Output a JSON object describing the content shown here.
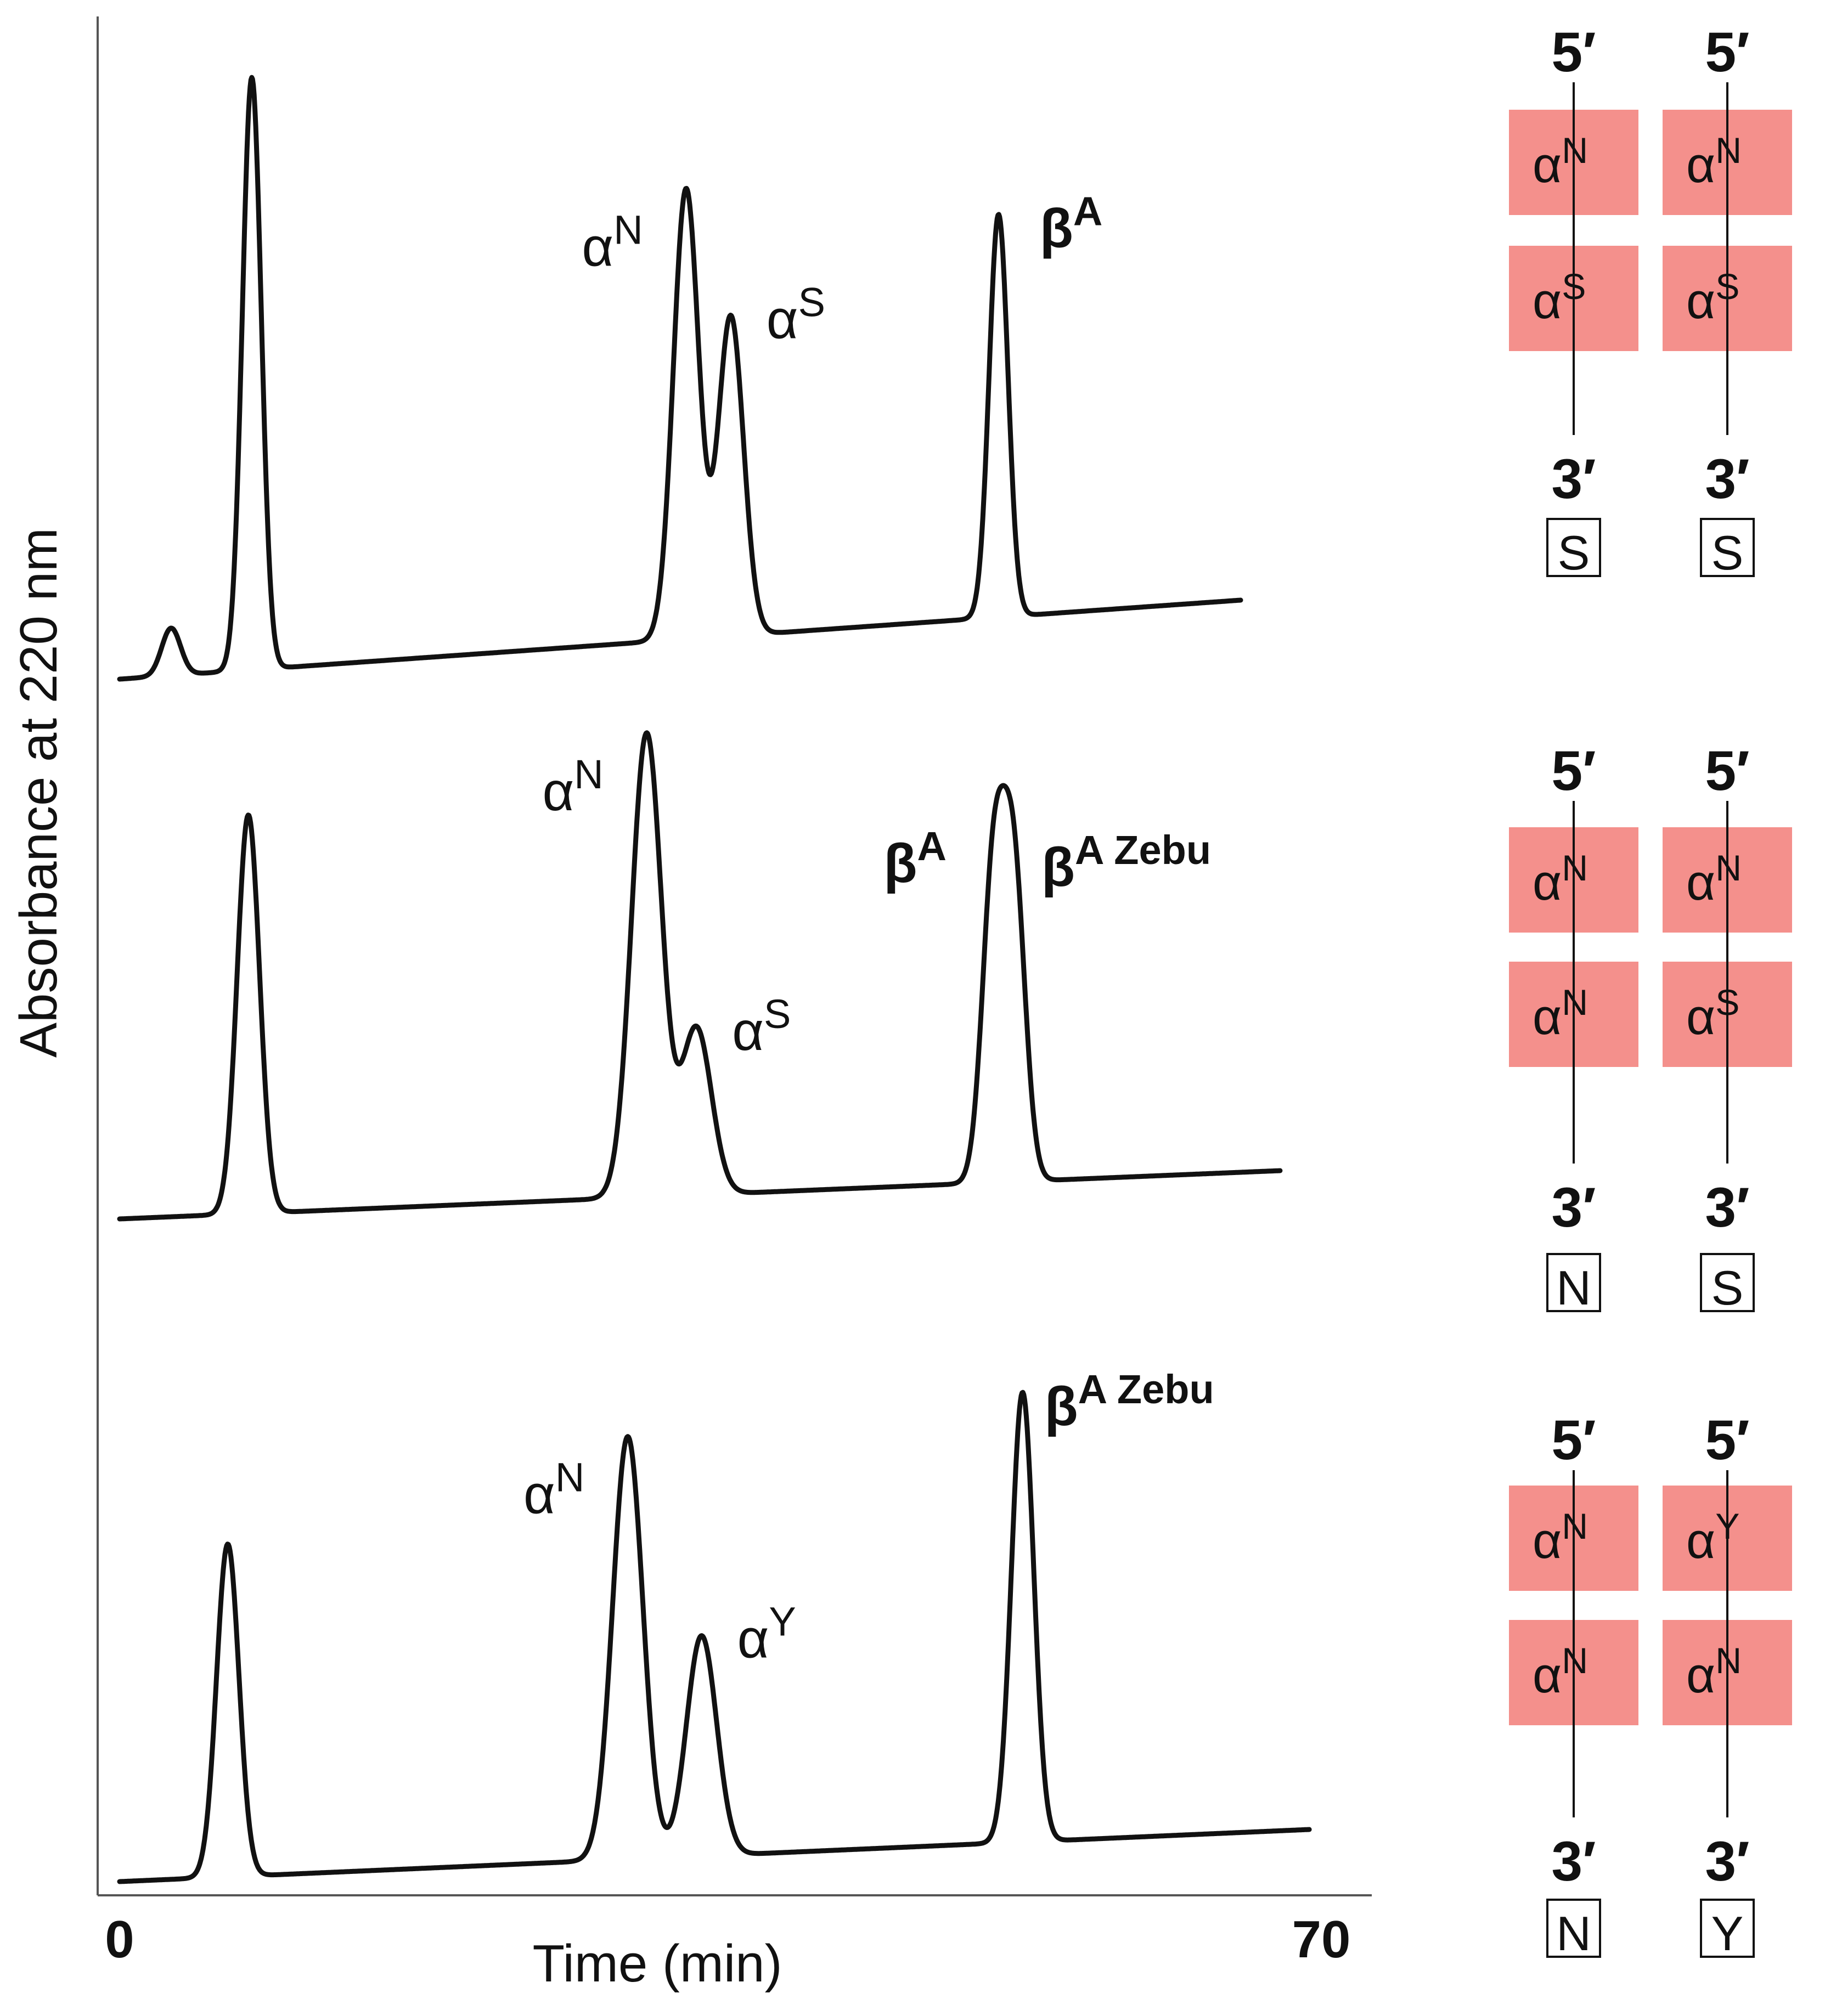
{
  "chart_data": {
    "type": "line",
    "xlabel": "Time (min)",
    "ylabel": "Absorbance at 220 nm",
    "xlim": [
      0,
      70
    ],
    "x_tick_labels": [
      "0",
      "70"
    ],
    "grid": false,
    "panels": [
      {
        "name": "top",
        "peaks": [
          {
            "label": "",
            "t": 3.0,
            "height": 0.08
          },
          {
            "label": "",
            "t": 7.7,
            "height": 1.0
          },
          {
            "label": "α",
            "sup": "N",
            "t": 33.0,
            "height": 0.76
          },
          {
            "label": "α",
            "sup": "S",
            "t": 35.6,
            "height": 0.54
          },
          {
            "label": "β",
            "sup": "A",
            "t": 51.2,
            "height": 0.68
          }
        ],
        "genotype": {
          "columns": [
            {
              "top": "5′",
              "genes": [
                {
                  "base": "α",
                  "sup": "N"
                },
                {
                  "base": "α",
                  "sup": "S"
                }
              ],
              "bottom": "3′",
              "allele": "S"
            },
            {
              "top": "5′",
              "genes": [
                {
                  "base": "α",
                  "sup": "N"
                },
                {
                  "base": "α",
                  "sup": "S"
                }
              ],
              "bottom": "3′",
              "allele": "S"
            }
          ]
        }
      },
      {
        "name": "middle",
        "peaks": [
          {
            "label": "",
            "t": 7.5,
            "height": 0.86
          },
          {
            "label": "α",
            "sup": "N",
            "t": 30.7,
            "height": 1.0
          },
          {
            "label": "α",
            "sup": "S",
            "t": 33.6,
            "height": 0.36
          },
          {
            "label": "β",
            "sup": "A",
            "t": 50.9,
            "height": 0.66
          },
          {
            "label": "β",
            "sup": "A Zebu",
            "t": 52.1,
            "height": 0.65
          }
        ],
        "genotype": {
          "columns": [
            {
              "top": "5′",
              "genes": [
                {
                  "base": "α",
                  "sup": "N"
                },
                {
                  "base": "α",
                  "sup": "N"
                }
              ],
              "bottom": "3′",
              "allele": "N"
            },
            {
              "top": "5′",
              "genes": [
                {
                  "base": "α",
                  "sup": "N"
                },
                {
                  "base": "α",
                  "sup": "S"
                }
              ],
              "bottom": "3′",
              "allele": "S"
            }
          ]
        }
      },
      {
        "name": "bottom",
        "peaks": [
          {
            "label": "",
            "t": 6.3,
            "height": 0.74
          },
          {
            "label": "α",
            "sup": "N",
            "t": 29.6,
            "height": 0.94
          },
          {
            "label": "α",
            "sup": "Y",
            "t": 33.9,
            "height": 0.49
          },
          {
            "label": "β",
            "sup": "A Zebu",
            "t": 52.6,
            "height": 1.0
          }
        ],
        "genotype": {
          "columns": [
            {
              "top": "5′",
              "genes": [
                {
                  "base": "α",
                  "sup": "N"
                },
                {
                  "base": "α",
                  "sup": "N"
                }
              ],
              "bottom": "3′",
              "allele": "N"
            },
            {
              "top": "5′",
              "genes": [
                {
                  "base": "α",
                  "sup": "Y"
                },
                {
                  "base": "α",
                  "sup": "N"
                }
              ],
              "bottom": "3′",
              "allele": "Y"
            }
          ]
        }
      }
    ]
  }
}
